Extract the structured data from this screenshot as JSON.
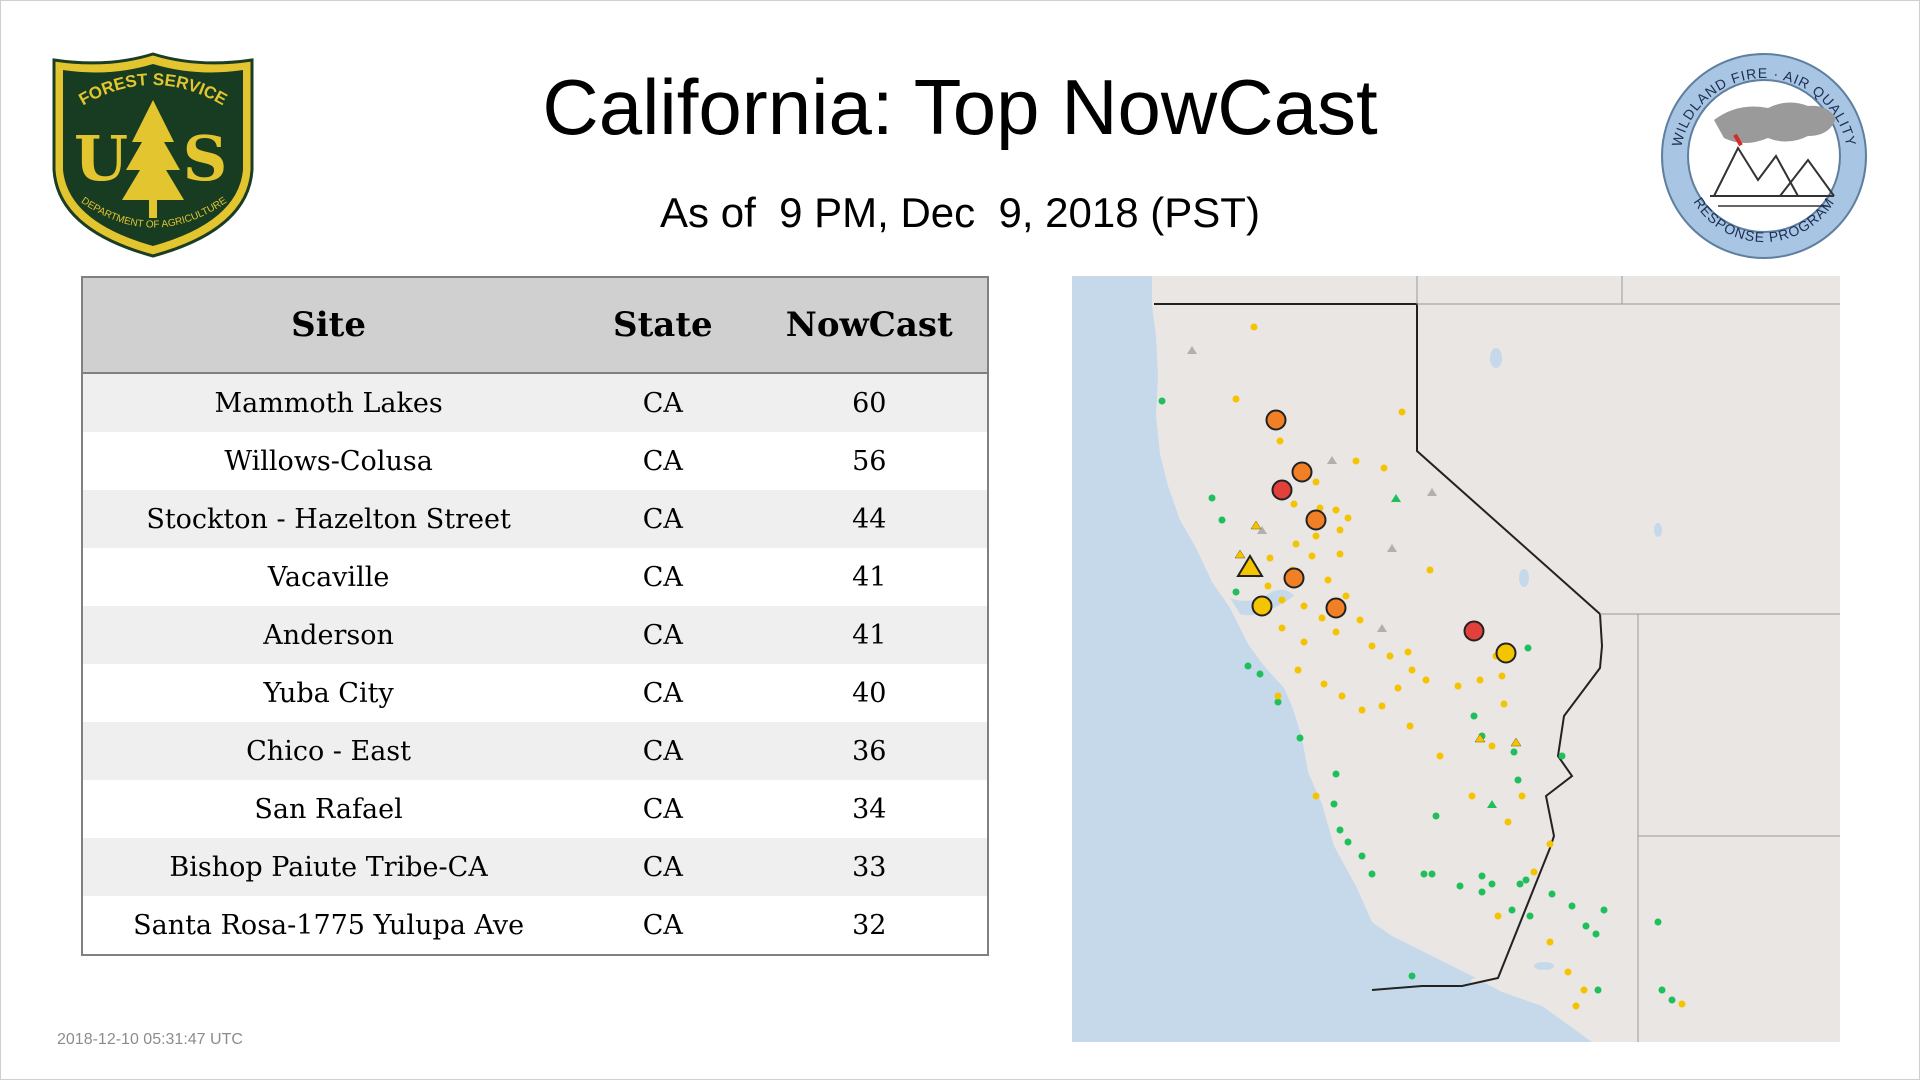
{
  "header": {
    "title": "California: Top NowCast",
    "subtitle": "As of  9 PM, Dec  9, 2018 (PST)"
  },
  "logos": {
    "forest_service": {
      "top_text": "FOREST SERVICE",
      "letters": "U S",
      "bottom_text": "DEPARTMENT OF AGRICULTURE",
      "colors": {
        "shield": "#173c21",
        "gold": "#e3c530"
      }
    },
    "wildland_fire": {
      "top_text": "WILDLAND FIRE · AIR QUALITY",
      "bottom_text": "RESPONSE PROGRAM",
      "colors": {
        "ring": "#a8c6e3"
      }
    }
  },
  "table": {
    "columns": [
      "Site",
      "State",
      "NowCast"
    ],
    "rows": [
      [
        "Mammoth Lakes",
        "CA",
        "60"
      ],
      [
        "Willows-Colusa",
        "CA",
        "56"
      ],
      [
        "Stockton - Hazelton Street",
        "CA",
        "44"
      ],
      [
        "Vacaville",
        "CA",
        "41"
      ],
      [
        "Anderson",
        "CA",
        "41"
      ],
      [
        "Yuba City",
        "CA",
        "40"
      ],
      [
        "Chico - East",
        "CA",
        "36"
      ],
      [
        "San Rafael",
        "CA",
        "34"
      ],
      [
        "Bishop Paiute Tribe-CA",
        "CA",
        "33"
      ],
      [
        "Santa Rosa-1775 Yulupa Ave",
        "CA",
        "32"
      ]
    ]
  },
  "map": {
    "colors": {
      "ocean": "#c6d9ea",
      "land": "#e9e6e3",
      "good": "#1fbf5c",
      "moderate": "#f5c400",
      "usg": "#f07f26",
      "unhealthy": "#e2403a",
      "no_data": "#b0b0b0"
    },
    "legend_categories": [
      "good",
      "moderate",
      "usg",
      "unhealthy"
    ]
  },
  "footer": {
    "timestamp": "2018-12-10 05:31:47 UTC"
  }
}
